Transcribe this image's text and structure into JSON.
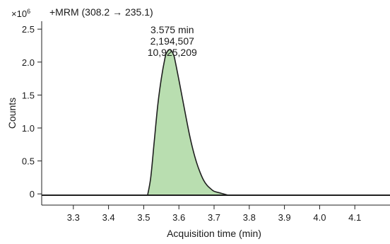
{
  "chart_data": {
    "type": "area",
    "title": "+MRM (308.2 → 235.1)",
    "xlabel": "Acquisition time (min)",
    "ylabel": "Counts",
    "y_multiplier_base": "×10",
    "y_multiplier_exp": "6",
    "xlim": [
      3.21,
      4.2
    ],
    "ylim": [
      -0.17,
      2.62
    ],
    "x_ticks": [
      3.3,
      3.4,
      3.5,
      3.6,
      3.7,
      3.8,
      3.9,
      4.0,
      4.1
    ],
    "x_tick_labels": [
      "3.3",
      "3.4",
      "3.5",
      "3.6",
      "3.7",
      "3.8",
      "3.9",
      "4.0",
      "4.1"
    ],
    "y_ticks": [
      0,
      0.5,
      1.0,
      1.5,
      2.0,
      2.5
    ],
    "y_tick_labels": [
      "0",
      "0.5",
      "1.0",
      "1.5",
      "2.0",
      "2.5"
    ],
    "baseline_y": -0.02,
    "peak_annotation": [
      "3.575 min",
      "2,194,507",
      "10,925,209"
    ],
    "peak": {
      "x": [
        3.511,
        3.52,
        3.53,
        3.54,
        3.55,
        3.56,
        3.565,
        3.575,
        3.585,
        3.59,
        3.6,
        3.61,
        3.62,
        3.63,
        3.64,
        3.65,
        3.66,
        3.67,
        3.68,
        3.69,
        3.7,
        3.72,
        3.74
      ],
      "y": [
        -0.02,
        0.25,
        0.8,
        1.35,
        1.75,
        2.05,
        2.14,
        2.19,
        2.11,
        2.0,
        1.73,
        1.45,
        1.17,
        0.9,
        0.67,
        0.48,
        0.33,
        0.21,
        0.13,
        0.08,
        0.04,
        0.01,
        -0.02
      ]
    },
    "grid": false,
    "colors": {
      "fill": "#b9deb0",
      "stroke": "#1f1f1f",
      "baseline": "#1f1f1f"
    }
  }
}
